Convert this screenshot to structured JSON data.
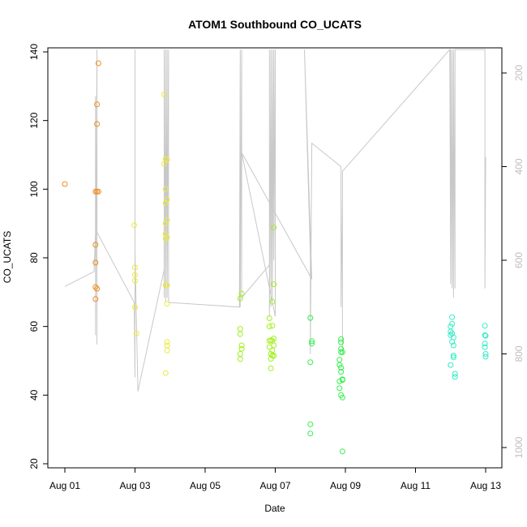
{
  "chart_data": {
    "type": "scatter",
    "title": "ATOM1 Southbound CO_UCATS",
    "xlabel": "Date",
    "ylabel": "CO_UCATS",
    "xlim": [
      "2016-08-01",
      "2016-08-13"
    ],
    "ylim": [
      20,
      140
    ],
    "x_ticks": [
      "Aug 01",
      "Aug 03",
      "Aug 05",
      "Aug 07",
      "Aug 09",
      "Aug 11",
      "Aug 13"
    ],
    "y_ticks": [
      "20",
      "40",
      "60",
      "80",
      "100",
      "120",
      "140"
    ],
    "right_axis": {
      "reversed": true,
      "ticks": [
        "200",
        "400",
        "600",
        "800",
        "1000"
      ],
      "color": "#bdbdbd"
    },
    "grid": false,
    "legend": "none",
    "marker": "open-circle",
    "series": [
      {
        "color": "#f08c1e",
        "points": [
          [
            "2016-08-01T00:00",
            101.5
          ],
          [
            "2016-08-01T21:00",
            99.3
          ],
          [
            "2016-08-01T21:00",
            83.8
          ],
          [
            "2016-08-01T21:00",
            78.6
          ],
          [
            "2016-08-01T21:00",
            71.5
          ],
          [
            "2016-08-01T21:00",
            68.0
          ],
          [
            "2016-08-01T22:00",
            71.0
          ],
          [
            "2016-08-01T22:00",
            99.3
          ],
          [
            "2016-08-01T22:00",
            119.0
          ],
          [
            "2016-08-01T22:00",
            124.7
          ],
          [
            "2016-08-01T23:00",
            136.7
          ],
          [
            "2016-08-01T23:00",
            99.3
          ]
        ]
      },
      {
        "color": "#ecea3c",
        "points": [
          [
            "2016-08-02T23:30",
            89.5
          ],
          [
            "2016-08-03T00:00",
            77.2
          ],
          [
            "2016-08-03T00:00",
            75.0
          ],
          [
            "2016-08-03T00:00",
            73.3
          ],
          [
            "2016-08-03T00:00",
            65.6
          ],
          [
            "2016-08-03T01:00",
            58.0
          ],
          [
            "2016-08-03T20:00",
            127.6
          ],
          [
            "2016-08-03T20:00",
            107.4
          ],
          [
            "2016-08-03T21:00",
            108.8
          ],
          [
            "2016-08-03T21:00",
            100.0
          ],
          [
            "2016-08-03T21:00",
            96.0
          ],
          [
            "2016-08-03T21:00",
            90.0
          ],
          [
            "2016-08-03T21:00",
            87.0
          ],
          [
            "2016-08-03T21:00",
            85.5
          ],
          [
            "2016-08-03T21:00",
            72.0
          ],
          [
            "2016-08-03T21:00",
            46.4
          ],
          [
            "2016-08-03T22:00",
            108.6
          ],
          [
            "2016-08-03T22:00",
            97.0
          ],
          [
            "2016-08-03T22:00",
            91.0
          ],
          [
            "2016-08-03T22:00",
            86.0
          ],
          [
            "2016-08-03T22:00",
            72.0
          ],
          [
            "2016-08-03T22:00",
            66.6
          ],
          [
            "2016-08-03T22:00",
            55.5
          ],
          [
            "2016-08-03T22:00",
            54.5
          ],
          [
            "2016-08-03T22:00",
            53.0
          ]
        ]
      },
      {
        "color": "#a2f020",
        "points": [
          [
            "2016-08-06T00:00",
            50.5
          ],
          [
            "2016-08-06T00:00",
            52.0
          ],
          [
            "2016-08-06T00:00",
            59.3
          ],
          [
            "2016-08-06T00:00",
            57.8
          ],
          [
            "2016-08-06T00:00",
            68.2
          ],
          [
            "2016-08-06T01:00",
            69.6
          ],
          [
            "2016-08-06T01:00",
            54.5
          ],
          [
            "2016-08-06T01:00",
            53.5
          ],
          [
            "2016-08-06T20:00",
            62.4
          ],
          [
            "2016-08-06T20:00",
            60.0
          ],
          [
            "2016-08-06T20:00",
            55.8
          ],
          [
            "2016-08-06T20:00",
            54.0
          ],
          [
            "2016-08-06T21:00",
            56.0
          ],
          [
            "2016-08-06T21:00",
            52.0
          ],
          [
            "2016-08-06T21:00",
            50.6
          ],
          [
            "2016-08-06T21:00",
            47.8
          ],
          [
            "2016-08-06T22:00",
            60.2
          ],
          [
            "2016-08-06T22:00",
            55.8
          ],
          [
            "2016-08-06T22:00",
            53.0
          ],
          [
            "2016-08-06T22:00",
            51.5
          ],
          [
            "2016-08-06T22:00",
            67.2
          ],
          [
            "2016-08-06T23:00",
            88.8
          ],
          [
            "2016-08-06T23:00",
            72.3
          ],
          [
            "2016-08-06T23:00",
            56.5
          ],
          [
            "2016-08-06T23:00",
            54.5
          ],
          [
            "2016-08-06T23:00",
            51.5
          ]
        ]
      },
      {
        "color": "#34f04a",
        "points": [
          [
            "2016-08-08T00:00",
            62.5
          ],
          [
            "2016-08-08T00:00",
            49.6
          ],
          [
            "2016-08-08T00:00",
            31.5
          ],
          [
            "2016-08-08T00:00",
            28.8
          ],
          [
            "2016-08-08T01:00",
            55.7
          ],
          [
            "2016-08-08T01:00",
            55.0
          ],
          [
            "2016-08-08T20:00",
            50.3
          ],
          [
            "2016-08-08T20:00",
            48.8
          ],
          [
            "2016-08-08T20:00",
            44.0
          ],
          [
            "2016-08-08T20:00",
            42.0
          ],
          [
            "2016-08-08T21:00",
            40.0
          ],
          [
            "2016-08-08T21:00",
            56.3
          ],
          [
            "2016-08-08T21:00",
            55.4
          ],
          [
            "2016-08-08T21:00",
            53.5
          ],
          [
            "2016-08-08T21:00",
            52.5
          ],
          [
            "2016-08-08T21:00",
            48.0
          ],
          [
            "2016-08-08T21:00",
            46.8
          ],
          [
            "2016-08-08T22:00",
            44.6
          ],
          [
            "2016-08-08T22:00",
            44.4
          ],
          [
            "2016-08-08T22:00",
            39.3
          ],
          [
            "2016-08-08T22:00",
            52.5
          ],
          [
            "2016-08-08T22:00",
            23.6
          ]
        ]
      },
      {
        "color": "#32ecc8",
        "points": [
          [
            "2016-08-12T00:00",
            60.0
          ],
          [
            "2016-08-12T00:00",
            58.5
          ],
          [
            "2016-08-12T00:00",
            57.5
          ],
          [
            "2016-08-12T00:00",
            48.8
          ],
          [
            "2016-08-12T01:00",
            62.7
          ],
          [
            "2016-08-12T01:00",
            60.8
          ],
          [
            "2016-08-12T01:00",
            58.0
          ],
          [
            "2016-08-12T01:00",
            55.5
          ],
          [
            "2016-08-12T02:00",
            56.8
          ],
          [
            "2016-08-12T02:00",
            54.5
          ],
          [
            "2016-08-12T02:00",
            51.5
          ],
          [
            "2016-08-12T02:00",
            51.0
          ],
          [
            "2016-08-12T03:00",
            46.2
          ],
          [
            "2016-08-12T03:00",
            45.3
          ],
          [
            "2016-08-12T23:30",
            60.2
          ],
          [
            "2016-08-12T23:30",
            57.5
          ],
          [
            "2016-08-12T23:30",
            55.0
          ],
          [
            "2016-08-12T23:30",
            54.0
          ],
          [
            "2016-08-13T00:00",
            57.3
          ],
          [
            "2016-08-13T00:00",
            52.0
          ],
          [
            "2016-08-13T00:00",
            51.2
          ]
        ]
      }
    ],
    "altitude_profile": {
      "color": "#c8c8c8",
      "points": [
        [
          "2016-08-01T00:00",
          656
        ],
        [
          "2016-08-01T20:00",
          624
        ],
        [
          "2016-08-01T21:00",
          540
        ],
        [
          "2016-08-01T21:00",
          250
        ],
        [
          "2016-08-01T21:00",
          760
        ],
        [
          "2016-08-01T22:00",
          150
        ],
        [
          "2016-08-01T22:00",
          780
        ],
        [
          "2016-08-01T22:00",
          540
        ],
        [
          "2016-08-02T23:30",
          690
        ],
        [
          "2016-08-03T00:00",
          850
        ],
        [
          "2016-08-03T00:00",
          150
        ],
        [
          "2016-08-03T00:00",
          840
        ],
        [
          "2016-08-03T00:00",
          580
        ],
        [
          "2016-08-03T02:00",
          880
        ],
        [
          "2016-08-03T20:00",
          620
        ],
        [
          "2016-08-03T20:00",
          150
        ],
        [
          "2016-08-03T20:00",
          680
        ],
        [
          "2016-08-03T21:00",
          150
        ],
        [
          "2016-08-03T21:00",
          690
        ],
        [
          "2016-08-03T22:00",
          150
        ],
        [
          "2016-08-03T22:00",
          680
        ],
        [
          "2016-08-03T23:00",
          150
        ],
        [
          "2016-08-03T23:00",
          690
        ],
        [
          "2016-08-05T23:30",
          700
        ],
        [
          "2016-08-06T00:00",
          150
        ],
        [
          "2016-08-06T00:00",
          700
        ],
        [
          "2016-08-06T01:00",
          150
        ],
        [
          "2016-08-06T01:00",
          680
        ],
        [
          "2016-08-06T20:00",
          610
        ],
        [
          "2016-08-06T20:00",
          150
        ],
        [
          "2016-08-06T20:00",
          720
        ],
        [
          "2016-08-06T21:00",
          150
        ],
        [
          "2016-08-06T21:00",
          700
        ],
        [
          "2016-08-06T22:00",
          150
        ],
        [
          "2016-08-06T22:00",
          690
        ],
        [
          "2016-08-06T23:00",
          150
        ],
        [
          "2016-08-06T23:00",
          600
        ],
        [
          "2016-08-07T00:00",
          150
        ],
        [
          "2016-08-07T00:00",
          720
        ],
        [
          "2016-08-06T01:00",
          370
        ],
        [
          "2016-08-08T01:00",
          640
        ],
        [
          "2016-08-07T20:00",
          150
        ],
        [
          "2016-08-08T00:00",
          590
        ],
        [
          "2016-08-08T00:00",
          800
        ],
        [
          "2016-08-08T01:00",
          350
        ],
        [
          "2016-08-08T21:00",
          400
        ],
        [
          "2016-08-08T21:00",
          700
        ],
        [
          "2016-08-08T22:00",
          460
        ],
        [
          "2016-08-08T22:00",
          800
        ],
        [
          "2016-08-08T22:00",
          410
        ],
        [
          "2016-08-11T23:30",
          150
        ],
        [
          "2016-08-12T00:00",
          650
        ],
        [
          "2016-08-12T00:00",
          150
        ],
        [
          "2016-08-12T01:00",
          660
        ],
        [
          "2016-08-12T01:00",
          150
        ],
        [
          "2016-08-12T02:00",
          680
        ],
        [
          "2016-08-12T02:00",
          150
        ],
        [
          "2016-08-12T03:00",
          660
        ],
        [
          "2016-08-12T03:00",
          150
        ],
        [
          "2016-08-12T23:30",
          150
        ],
        [
          "2016-08-12T23:30",
          660
        ],
        [
          "2016-08-13T00:00",
          380
        ],
        [
          "2016-08-12T23:30",
          610
        ]
      ]
    }
  }
}
